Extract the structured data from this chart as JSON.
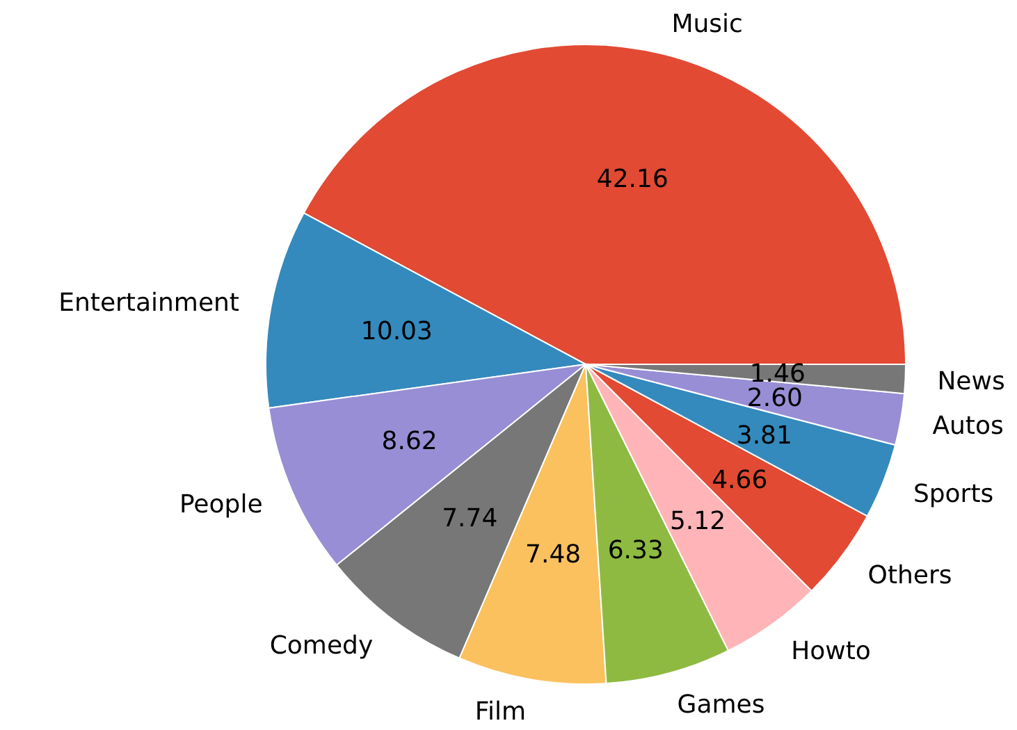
{
  "chart_data": {
    "type": "pie",
    "categories": [
      "Music",
      "Entertainment",
      "People",
      "Comedy",
      "Film",
      "Games",
      "Howto",
      "Others",
      "Sports",
      "Autos",
      "News"
    ],
    "values": [
      42.16,
      10.03,
      8.62,
      7.74,
      7.48,
      6.33,
      5.12,
      4.66,
      3.81,
      2.6,
      1.46
    ],
    "colors": [
      "#e24a33",
      "#348abd",
      "#988ed5",
      "#777777",
      "#fbc15e",
      "#8eba42",
      "#ffb5b8",
      "#e24a33",
      "#348abd",
      "#988ed5",
      "#777777"
    ],
    "value_labels": [
      "42.16",
      "10.03",
      "8.62",
      "7.74",
      "7.48",
      "6.33",
      "5.12",
      "4.66",
      "3.81",
      "2.60",
      "1.46"
    ]
  }
}
